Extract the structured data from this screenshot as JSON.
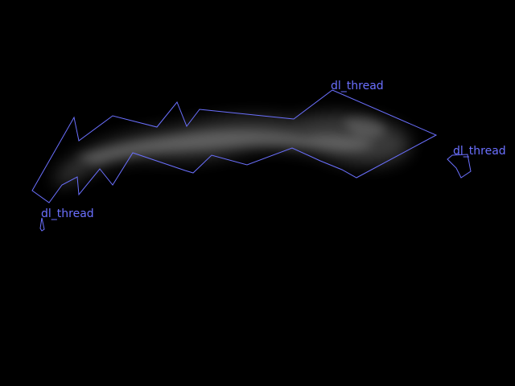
{
  "colors": {
    "background": "#000000",
    "annotation": "#6b70ff",
    "haze": "#b4b4b4"
  },
  "regions": [
    {
      "label": "dl_thread"
    },
    {
      "label": "dl_thread"
    },
    {
      "label": "dl_thread"
    }
  ]
}
